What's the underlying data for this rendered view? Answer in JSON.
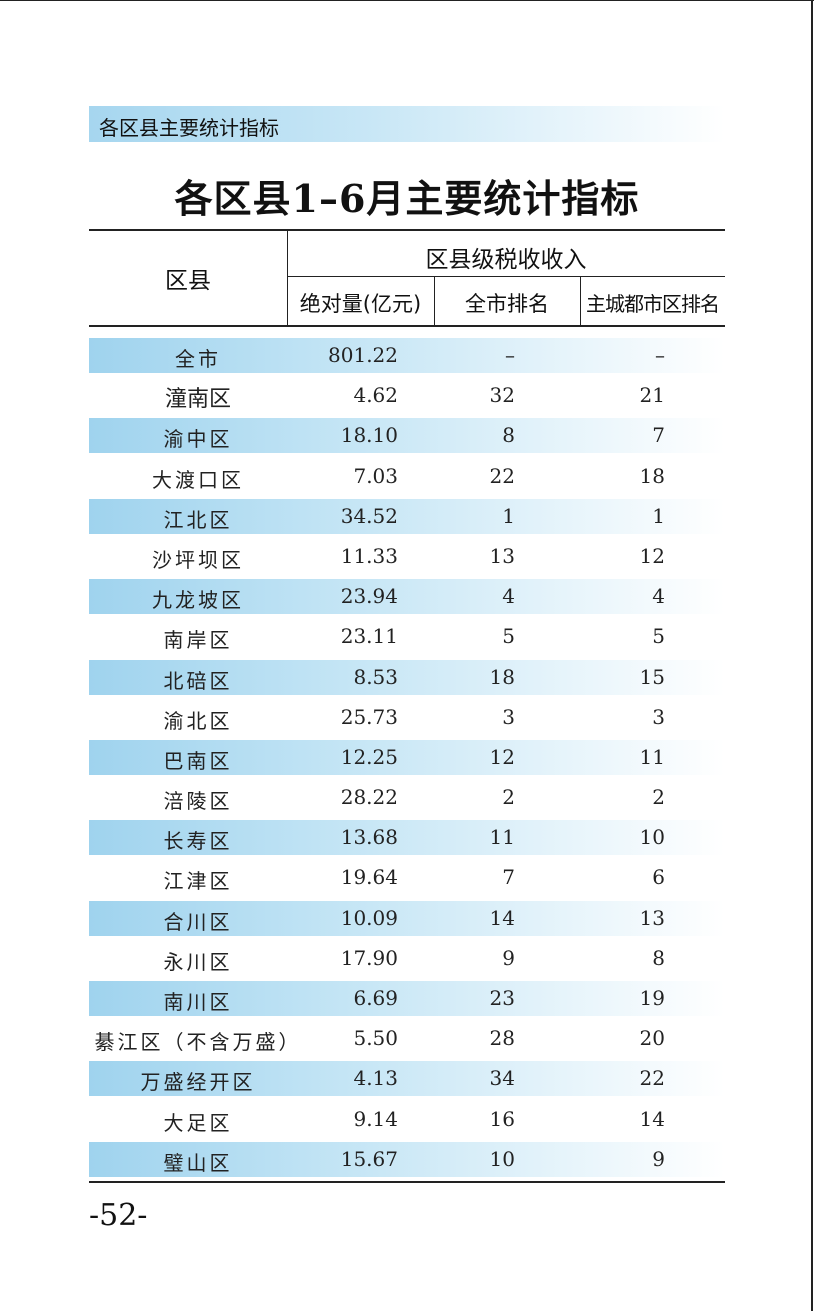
{
  "section_banner": "各区县主要统计指标",
  "title": "各区县1–6月主要统计指标",
  "header": {
    "district": "区县",
    "group": "区县级税收收入",
    "absolute": "绝对量(亿元)",
    "city_rank": "全市排名",
    "main_rank": "主城都市区排名"
  },
  "rows": [
    {
      "name": "全市",
      "value": "801.22",
      "city_rank": "–",
      "main_rank": "–",
      "shaded": true
    },
    {
      "name": "潼南区",
      "value": "4.62",
      "city_rank": "32",
      "main_rank": "21",
      "shaded": false
    },
    {
      "name": "渝中区",
      "value": "18.10",
      "city_rank": "8",
      "main_rank": "7",
      "shaded": true
    },
    {
      "name": "大渡口区",
      "value": "7.03",
      "city_rank": "22",
      "main_rank": "18",
      "shaded": false
    },
    {
      "name": "江北区",
      "value": "34.52",
      "city_rank": "1",
      "main_rank": "1",
      "shaded": true
    },
    {
      "name": "沙坪坝区",
      "value": "11.33",
      "city_rank": "13",
      "main_rank": "12",
      "shaded": false
    },
    {
      "name": "九龙坡区",
      "value": "23.94",
      "city_rank": "4",
      "main_rank": "4",
      "shaded": true
    },
    {
      "name": "南岸区",
      "value": "23.11",
      "city_rank": "5",
      "main_rank": "5",
      "shaded": false
    },
    {
      "name": "北碚区",
      "value": "8.53",
      "city_rank": "18",
      "main_rank": "15",
      "shaded": true
    },
    {
      "name": "渝北区",
      "value": "25.73",
      "city_rank": "3",
      "main_rank": "3",
      "shaded": false
    },
    {
      "name": "巴南区",
      "value": "12.25",
      "city_rank": "12",
      "main_rank": "11",
      "shaded": true
    },
    {
      "name": "涪陵区",
      "value": "28.22",
      "city_rank": "2",
      "main_rank": "2",
      "shaded": false
    },
    {
      "name": "长寿区",
      "value": "13.68",
      "city_rank": "11",
      "main_rank": "10",
      "shaded": true
    },
    {
      "name": "江津区",
      "value": "19.64",
      "city_rank": "7",
      "main_rank": "6",
      "shaded": false
    },
    {
      "name": "合川区",
      "value": "10.09",
      "city_rank": "14",
      "main_rank": "13",
      "shaded": true
    },
    {
      "name": "永川区",
      "value": "17.90",
      "city_rank": "9",
      "main_rank": "8",
      "shaded": false
    },
    {
      "name": "南川区",
      "value": "6.69",
      "city_rank": "23",
      "main_rank": "19",
      "shaded": true
    },
    {
      "name": "綦江区（不含万盛）",
      "value": "5.50",
      "city_rank": "28",
      "main_rank": "20",
      "shaded": false
    },
    {
      "name": "万盛经开区",
      "value": "4.13",
      "city_rank": "34",
      "main_rank": "22",
      "shaded": true
    },
    {
      "name": "大足区",
      "value": "9.14",
      "city_rank": "16",
      "main_rank": "14",
      "shaded": false
    },
    {
      "name": "璧山区",
      "value": "15.67",
      "city_rank": "10",
      "main_rank": "9",
      "shaded": true
    }
  ],
  "page_number": "-52-"
}
